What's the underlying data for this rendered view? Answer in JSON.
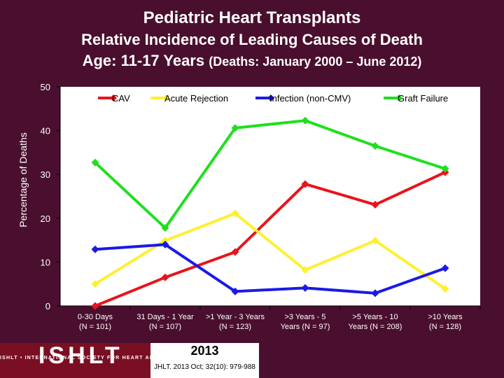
{
  "title": {
    "line1": "Pediatric Heart Transplants",
    "line2": "Relative Incidence of Leading Causes of Death",
    "line3_main": "Age: 11-17 Years",
    "line3_small": "(Deaths: January 2000 – June 2012)"
  },
  "chart_data": {
    "type": "line",
    "ylabel": "Percentage of Deaths",
    "ylim": [
      0,
      50
    ],
    "yticks": [
      0,
      10,
      20,
      30,
      40,
      50
    ],
    "categories": [
      {
        "line1": "0-30 Days",
        "line2": "(N = 101)"
      },
      {
        "line1": "31 Days - 1 Year",
        "line2": "(N = 107)"
      },
      {
        "line1": ">1 Year - 3 Years",
        "line2": "(N = 123)"
      },
      {
        "line1": ">3 Years - 5",
        "line2": "Years (N = 97)"
      },
      {
        "line1": ">5 Years - 10",
        "line2": "Years (N = 208)"
      },
      {
        "line1": ">10 Years",
        "line2": "(N = 128)"
      }
    ],
    "series": [
      {
        "name": "CAV",
        "color": "#e8141c",
        "values": [
          0,
          6.5,
          12.3,
          27.8,
          23.1,
          30.5
        ]
      },
      {
        "name": "Acute Rejection",
        "color": "#ffef33",
        "values": [
          5,
          14.9,
          21.1,
          8.2,
          14.9,
          3.9
        ]
      },
      {
        "name": "Infection (non-CMV)",
        "color": "#1a1ae6",
        "values": [
          12.9,
          14,
          3.3,
          4.1,
          2.9,
          8.6
        ]
      },
      {
        "name": "Graft Failure",
        "color": "#1ee01e",
        "values": [
          32.7,
          17.8,
          40.6,
          42.3,
          36.5,
          31.3
        ]
      }
    ],
    "legend_position": "top"
  },
  "footer": {
    "logo": "ISHLT",
    "logo_sub": "ISHLT • INTERNATIONAL SOCIETY FOR HEART AND LUNG TRANSPLANTATION",
    "year": "2013",
    "citation": "JHLT. 2013 Oct; 32(10): 979-988"
  }
}
